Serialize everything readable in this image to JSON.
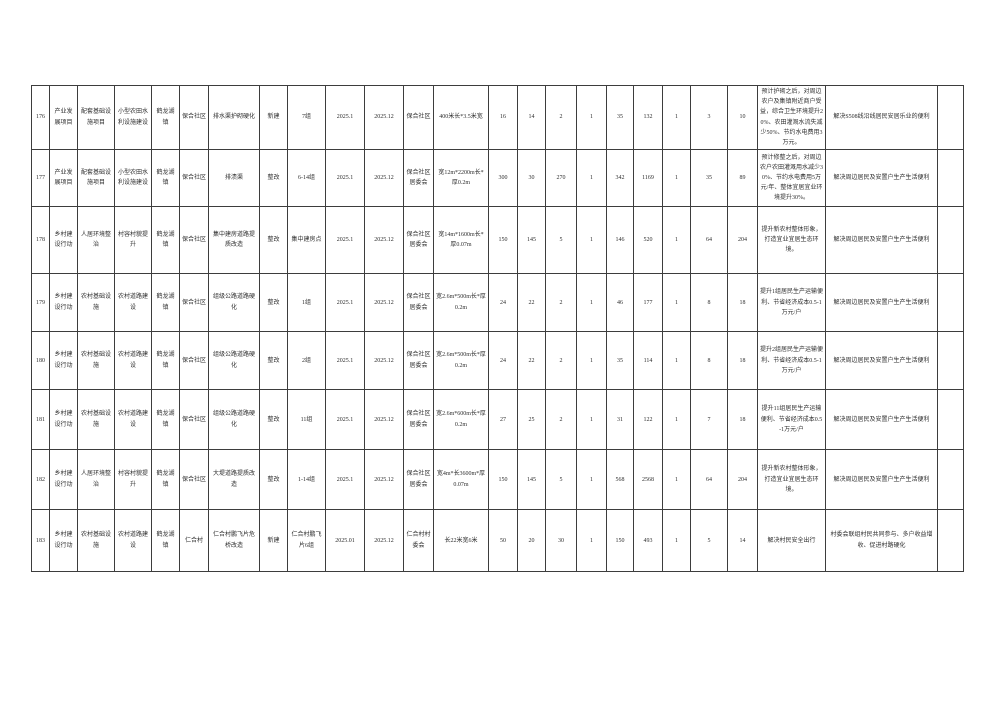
{
  "page": {
    "background": "#ffffff",
    "border_color": "#3d3d3d",
    "text_color": "#2e2e2e"
  },
  "table": {
    "rows": [
      {
        "cells": [
          "176",
          "产业发展项目",
          "配套基础设施项目",
          "小型农田水利设施建设",
          "鹤龙湖镇",
          "保合社区",
          "排水渠护砌硬化",
          "新建",
          "7组",
          "2025.1",
          "2025.12",
          "保合社区",
          "400米长*3.5米宽",
          "16",
          "14",
          "2",
          "1",
          "35",
          "132",
          "1",
          "3",
          "10",
          "预计护砌之后，对周边农户及集镇附近商户受益，综合卫生环境提升20%、农田灌溉水流失减少50%、节约水电费用3万元。",
          "解决S508线沿线居民安居乐业的便利",
          ""
        ]
      },
      {
        "cells": [
          "177",
          "产业发展项目",
          "配套基础设施项目",
          "小型农田水利设施建设",
          "鹤龙湖镇",
          "保合社区",
          "排渍渠",
          "整改",
          "6-14组",
          "2025.1",
          "2025.12",
          "保合社区居委会",
          "宽12m*2200m长*厚0.2m",
          "300",
          "30",
          "270",
          "1",
          "342",
          "1169",
          "1",
          "35",
          "89",
          "预计修整之后，对周边农户农田灌溉用水减少30%、节约水电费用5万元/年、整体宜居宜业环境提升30%。",
          "解决周边居民及安置户生产生活便利",
          ""
        ]
      },
      {
        "cells": [
          "178",
          "乡村建设行动",
          "人居环境整治",
          "村容村貌提升",
          "鹤龙湖镇",
          "保合社区",
          "集中建房道路提质改造",
          "整改",
          "集中建房点",
          "2025.1",
          "2025.12",
          "保合社区居委会",
          "宽14m*1600m长*厚0.07m",
          "150",
          "145",
          "5",
          "1",
          "146",
          "520",
          "1",
          "64",
          "204",
          "提升新农村整体形象，打造宜业宜居生态环境。",
          "解决周边居民及安置户生产生活便利",
          ""
        ]
      },
      {
        "cells": [
          "179",
          "乡村建设行动",
          "农村基础设施",
          "农村道路建设",
          "鹤龙湖镇",
          "保合社区",
          "组级公路道路硬化",
          "整改",
          "1组",
          "2025.1",
          "2025.12",
          "保合社区居委会",
          "宽2.6m*500m长*厚0.2m",
          "24",
          "22",
          "2",
          "1",
          "46",
          "177",
          "1",
          "8",
          "18",
          "提升1组居民生产运输便利、节省经济成本0.5-1万元/户",
          "解决周边居民及安置户生产生活便利",
          ""
        ]
      },
      {
        "cells": [
          "180",
          "乡村建设行动",
          "农村基础设施",
          "农村道路建设",
          "鹤龙湖镇",
          "保合社区",
          "组级公路道路硬化",
          "整改",
          "2组",
          "2025.1",
          "2025.12",
          "保合社区居委会",
          "宽2.6m*500m长*厚0.2m",
          "24",
          "22",
          "2",
          "1",
          "35",
          "114",
          "1",
          "8",
          "18",
          "提升2组居民生产运输便利、节省经济成本0.5-1万元/户",
          "解决周边居民及安置户生产生活便利",
          ""
        ]
      },
      {
        "cells": [
          "181",
          "乡村建设行动",
          "农村基础设施",
          "农村道路建设",
          "鹤龙湖镇",
          "保合社区",
          "组级公路道路硬化",
          "整改",
          "11组",
          "2025.1",
          "2025.12",
          "保合社区居委会",
          "宽2.6m*600m长*厚0.2m",
          "27",
          "25",
          "2",
          "1",
          "31",
          "122",
          "1",
          "7",
          "18",
          "提升11组居民生产运输便利、节省经济成本0.5-1万元/户",
          "解决周边居民及安置户生产生活便利",
          ""
        ]
      },
      {
        "cells": [
          "182",
          "乡村建设行动",
          "人居环境整治",
          "村容村貌提升",
          "鹤龙湖镇",
          "保合社区",
          "大堤道路提质改造",
          "整改",
          "1-14组",
          "2025.1",
          "2025.12",
          "保合社区居委会",
          "宽4m*长3600m*厚0.07m",
          "150",
          "145",
          "5",
          "1",
          "568",
          "2568",
          "1",
          "64",
          "204",
          "提升新农村整体形象，打造宜业宜居生态环境。",
          "解决周边居民及安置户生产生活便利",
          ""
        ]
      },
      {
        "cells": [
          "183",
          "乡村建设行动",
          "农村基础设施",
          "农村道路建设",
          "鹤龙湖镇",
          "仁合村",
          "仁合村鹏飞片危桥改造",
          "新建",
          "仁合村鹏飞片6组",
          "2025.01",
          "2025.12",
          "仁合村村委会",
          "长22米宽6米",
          "50",
          "20",
          "30",
          "1",
          "150",
          "493",
          "1",
          "5",
          "14",
          "解决村民安全出行",
          "村委会联组村民共同参与、多户收益增收、促进村路硬化",
          ""
        ]
      }
    ]
  }
}
